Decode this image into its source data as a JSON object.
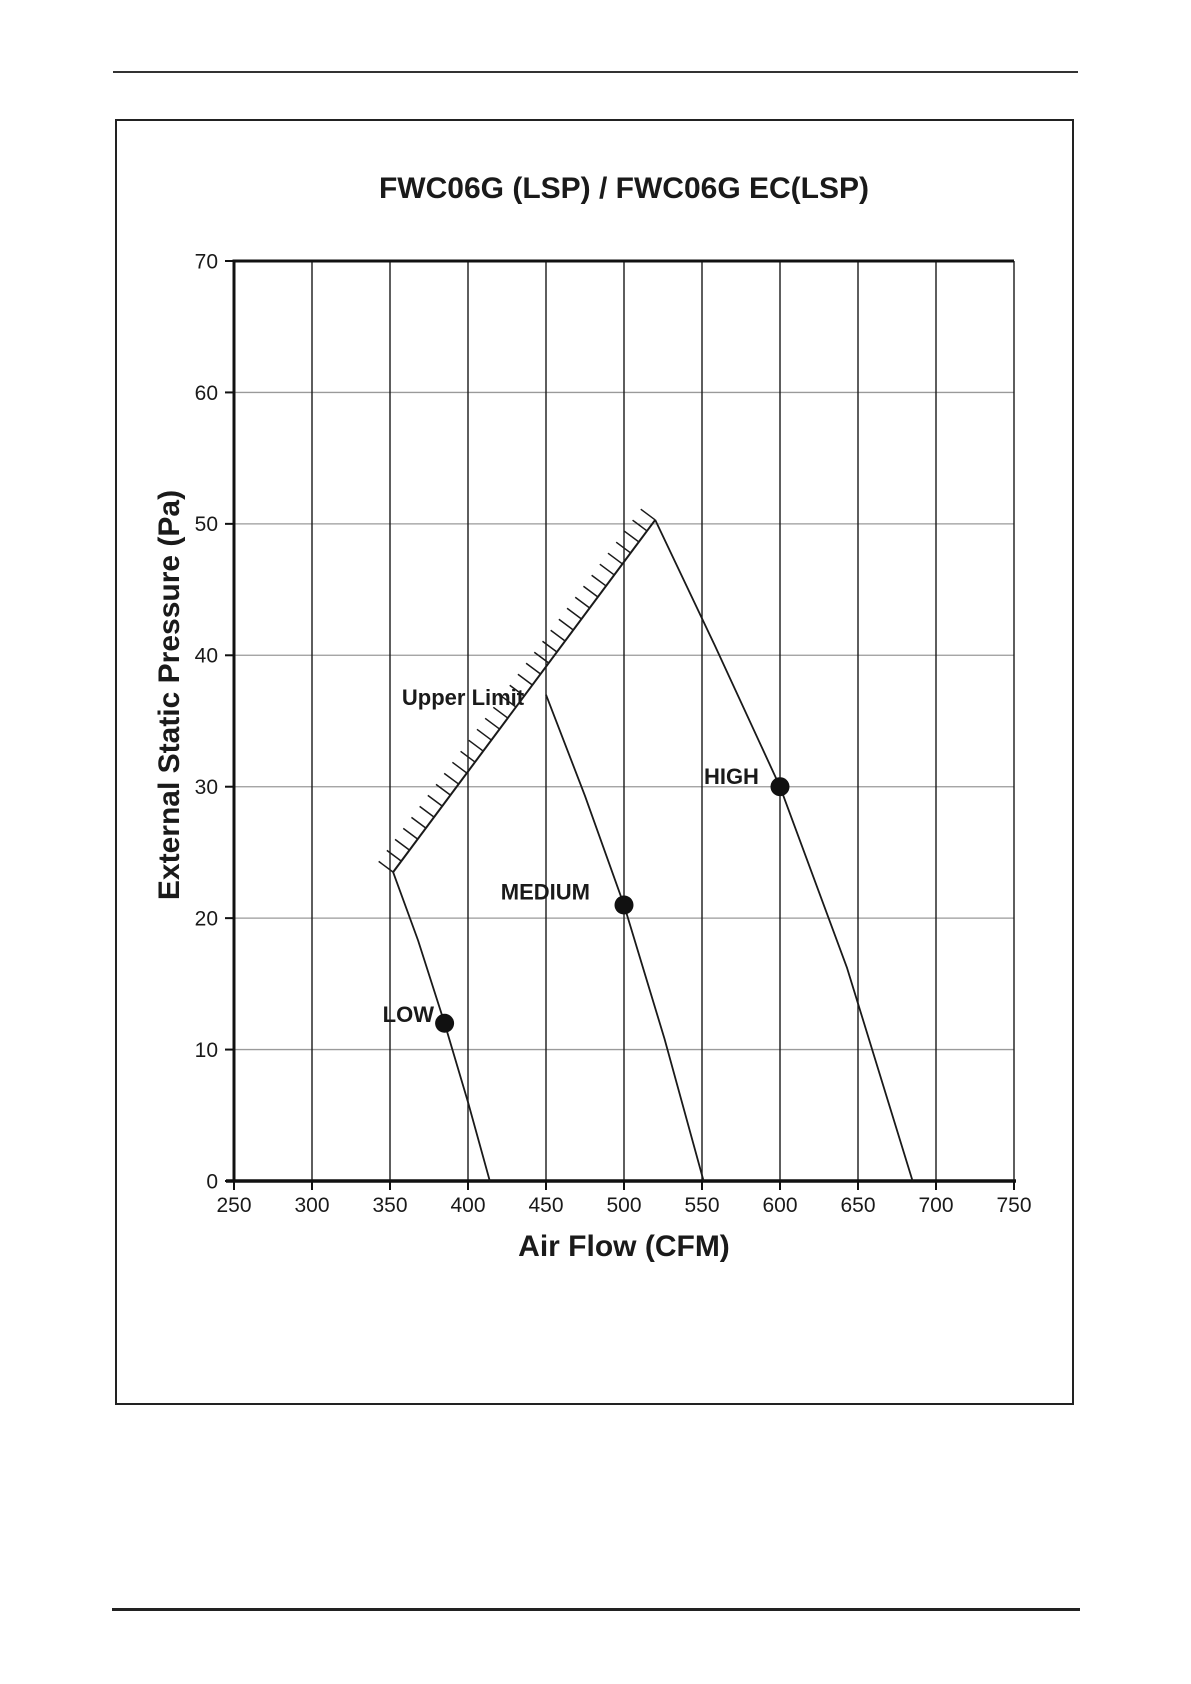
{
  "title": "FWC06G (LSP) / FWC06G EC(LSP)",
  "chart_data": {
    "type": "line",
    "title": "FWC06G (LSP) / FWC06G EC(LSP)",
    "xlabel": "Air Flow (CFM)",
    "ylabel": "External Static Pressure (Pa)",
    "xlim": [
      250,
      750
    ],
    "ylim": [
      0,
      70
    ],
    "xticks": [
      250,
      300,
      350,
      400,
      450,
      500,
      550,
      600,
      650,
      700,
      750
    ],
    "yticks": [
      0,
      10,
      20,
      30,
      40,
      50,
      60,
      70
    ],
    "grid": {
      "vertical": true,
      "horizontal": true
    },
    "legend": "none",
    "series": [
      {
        "name": "LOW",
        "points": [
          [
            352,
            23.5
          ],
          [
            368,
            18.3
          ],
          [
            385,
            12
          ],
          [
            400,
            6
          ],
          [
            414,
            0
          ]
        ],
        "marker": {
          "x": 385,
          "y": 12
        }
      },
      {
        "name": "MEDIUM",
        "points": [
          [
            450,
            37
          ],
          [
            475,
            29.3
          ],
          [
            500,
            21
          ],
          [
            526,
            10.8
          ],
          [
            551,
            0
          ]
        ],
        "marker": {
          "x": 500,
          "y": 21
        }
      },
      {
        "name": "HIGH",
        "points": [
          [
            520,
            50.3
          ],
          [
            558,
            40.8
          ],
          [
            600,
            30
          ],
          [
            643,
            16.2
          ],
          [
            685,
            0
          ]
        ],
        "marker": {
          "x": 600,
          "y": 30
        }
      }
    ],
    "upper_limit": {
      "from": [
        352,
        23.5
      ],
      "to": [
        520,
        50.3
      ],
      "hatch_side": "upper-left"
    },
    "annotations": [
      {
        "text": "Upper Limit",
        "x": 396.8,
        "y": 36.8,
        "anchor": "middle"
      },
      {
        "text": "LOW",
        "x": 378.2,
        "y": 12.7,
        "anchor": "end"
      },
      {
        "text": "MEDIUM",
        "x": 478.2,
        "y": 22.0,
        "anchor": "end"
      },
      {
        "text": "HIGH",
        "x": 586.5,
        "y": 30.8,
        "anchor": "end"
      }
    ],
    "colors": {
      "curve": "#1a1a1a",
      "marker": "#111111",
      "vgrid": "#1a1a1a",
      "hgrid": "#9a9a9a",
      "axis": "#111111",
      "text": "#1a1a1a"
    }
  }
}
